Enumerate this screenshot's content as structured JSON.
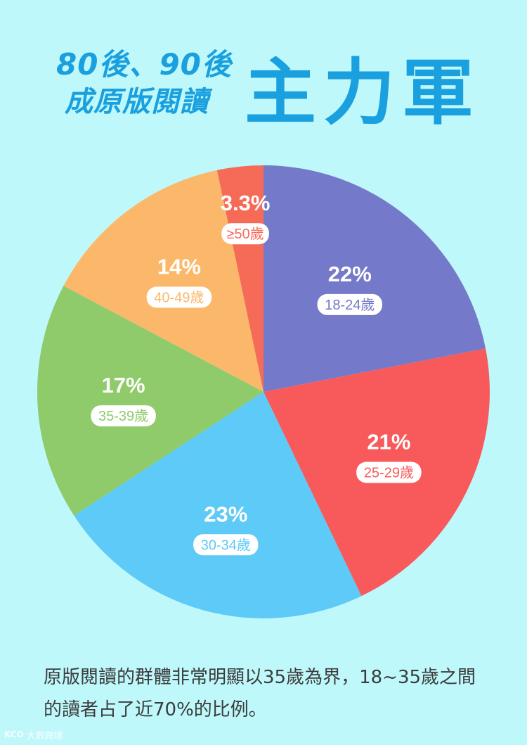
{
  "title": {
    "line1": "80後、90後",
    "line2": "成原版閱讀",
    "big": "主力軍"
  },
  "chart_data": {
    "type": "pie",
    "start_angle_deg": 0,
    "direction": "clockwise",
    "slices": [
      {
        "label": "18-24歲",
        "value": 22,
        "value_label": "22%",
        "color": "#7479c9"
      },
      {
        "label": "25-29歲",
        "value": 21,
        "value_label": "21%",
        "color": "#f85a5c"
      },
      {
        "label": "30-34歲",
        "value": 23,
        "value_label": "23%",
        "color": "#5ecaf7"
      },
      {
        "label": "35-39歲",
        "value": 17,
        "value_label": "17%",
        "color": "#8fcb6b"
      },
      {
        "label": "40-49歲",
        "value": 14,
        "value_label": "14%",
        "color": "#fbb86b"
      },
      {
        "label": "≥50歲",
        "value": 3.3,
        "value_label": "3.3%",
        "color": "#f66a58"
      }
    ]
  },
  "caption": "原版閱讀的群體非常明顯以35歲為界，18~35歲之間的讀者占了近70%的比例。",
  "watermark": {
    "logo": "KCO",
    "text": "大數跨境"
  }
}
